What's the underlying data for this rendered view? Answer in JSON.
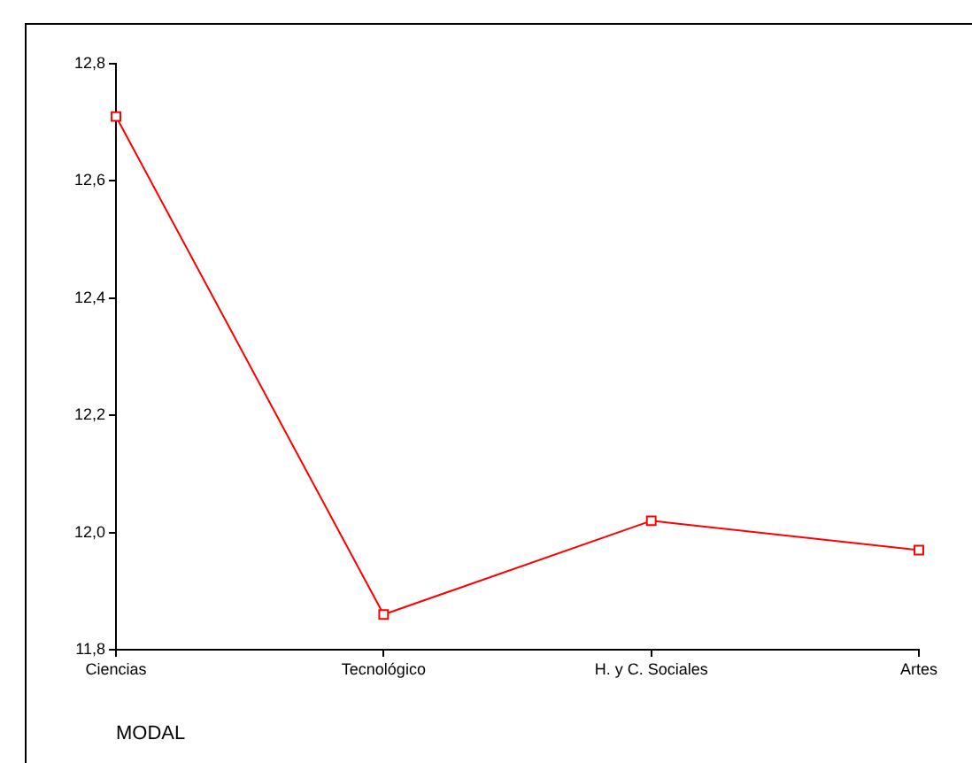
{
  "chart_data": {
    "type": "line",
    "xlabel": "MODAL",
    "categories": [
      "Ciencias",
      "Tecnológico",
      "H. y C. Sociales",
      "Artes"
    ],
    "series": [
      {
        "color": "#ff0000",
        "values": [
          12.71,
          11.86,
          12.02,
          11.97
        ]
      }
    ],
    "ylim": [
      11.8,
      12.8
    ],
    "yticks": [
      {
        "value": 11.8,
        "label": "11,8"
      },
      {
        "value": 12.0,
        "label": "12,0"
      },
      {
        "value": 12.2,
        "label": "12,2"
      },
      {
        "value": 12.4,
        "label": "12,4"
      },
      {
        "value": 12.6,
        "label": "12,6"
      },
      {
        "value": 12.8,
        "label": "12,8"
      }
    ],
    "grid": false,
    "legend": false,
    "marker": "square",
    "line_style": "solid"
  }
}
